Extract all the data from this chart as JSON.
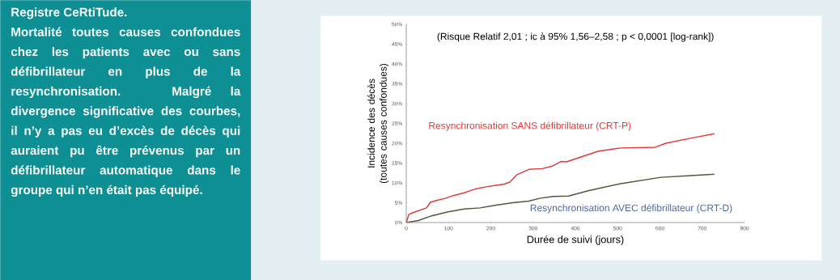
{
  "chart_data": {
    "type": "line",
    "title": "Registre CeRtiTude.",
    "subtitle": "Mortalité toutes causes confondues chez les patients avec ou sans défibrillateur en plus de la resynchronisation. Malgré la divergence significative des courbes, il n’y a pas eu d’excès de décès qui auraient pu être prévenus par un défibrillateur automatique dans le groupe qui n’en était pas équipé.",
    "xlabel": "Durée de suivi (jours)",
    "ylabel": "Incidence des décès (toutes causes confondues)",
    "annotations": [
      "(Risque Relatif 2,01 ; ic à 95% 1,56–2,58 ; p < 0,0001 [log-rank])"
    ],
    "xlim": [
      0,
      800
    ],
    "ylim": [
      0,
      50
    ],
    "xticks": [
      0,
      100,
      200,
      300,
      400,
      500,
      600,
      700,
      800
    ],
    "yticks": [
      {
        "value": 0,
        "label": "0%"
      },
      {
        "value": 5,
        "label": "5%"
      },
      {
        "value": 10,
        "label": "10%"
      },
      {
        "value": 15,
        "label": "15%"
      },
      {
        "value": 20,
        "label": "20%"
      },
      {
        "value": 25,
        "label": "25%"
      },
      {
        "value": 30,
        "label": "30%"
      },
      {
        "value": 35,
        "label": "35%"
      },
      {
        "value": 40,
        "label": "40%"
      },
      {
        "value": 45,
        "label": "45%"
      },
      {
        "value": 50,
        "label": "50%"
      }
    ],
    "grid": false,
    "legend": false,
    "marker": "none",
    "line_style": "solid",
    "series": [
      {
        "name": "Resynchronisation SANS défibrillateur (CRT-P)",
        "color": "#e03a3a",
        "x": [
          0,
          6,
          16,
          32,
          48,
          57,
          73,
          92,
          111,
          137,
          162,
          188,
          213,
          232,
          245,
          261,
          290,
          322,
          347,
          366,
          379,
          423,
          455,
          507,
          589,
          614,
          679,
          729
        ],
        "values": [
          0,
          2.0,
          2.5,
          3.1,
          3.7,
          5.1,
          5.6,
          6.1,
          6.8,
          7.5,
          8.4,
          9.0,
          9.4,
          9.7,
          10.2,
          12.0,
          13.4,
          13.6,
          14.3,
          15.4,
          15.3,
          16.9,
          18.0,
          18.8,
          19.0,
          20.0,
          21.4,
          22.4
        ]
      },
      {
        "name": "Resynchronisation AVEC défibrillateur (CRT-D)",
        "color": "#55553a",
        "x": [
          0,
          29,
          60,
          99,
          137,
          175,
          213,
          252,
          290,
          315,
          347,
          384,
          430,
          507,
          602,
          665,
          729
        ],
        "values": [
          0,
          0.5,
          1.7,
          2.7,
          3.4,
          3.7,
          4.4,
          5.0,
          5.4,
          6.1,
          6.6,
          6.7,
          8.0,
          9.8,
          11.4,
          11.8,
          12.2
        ]
      }
    ]
  }
}
